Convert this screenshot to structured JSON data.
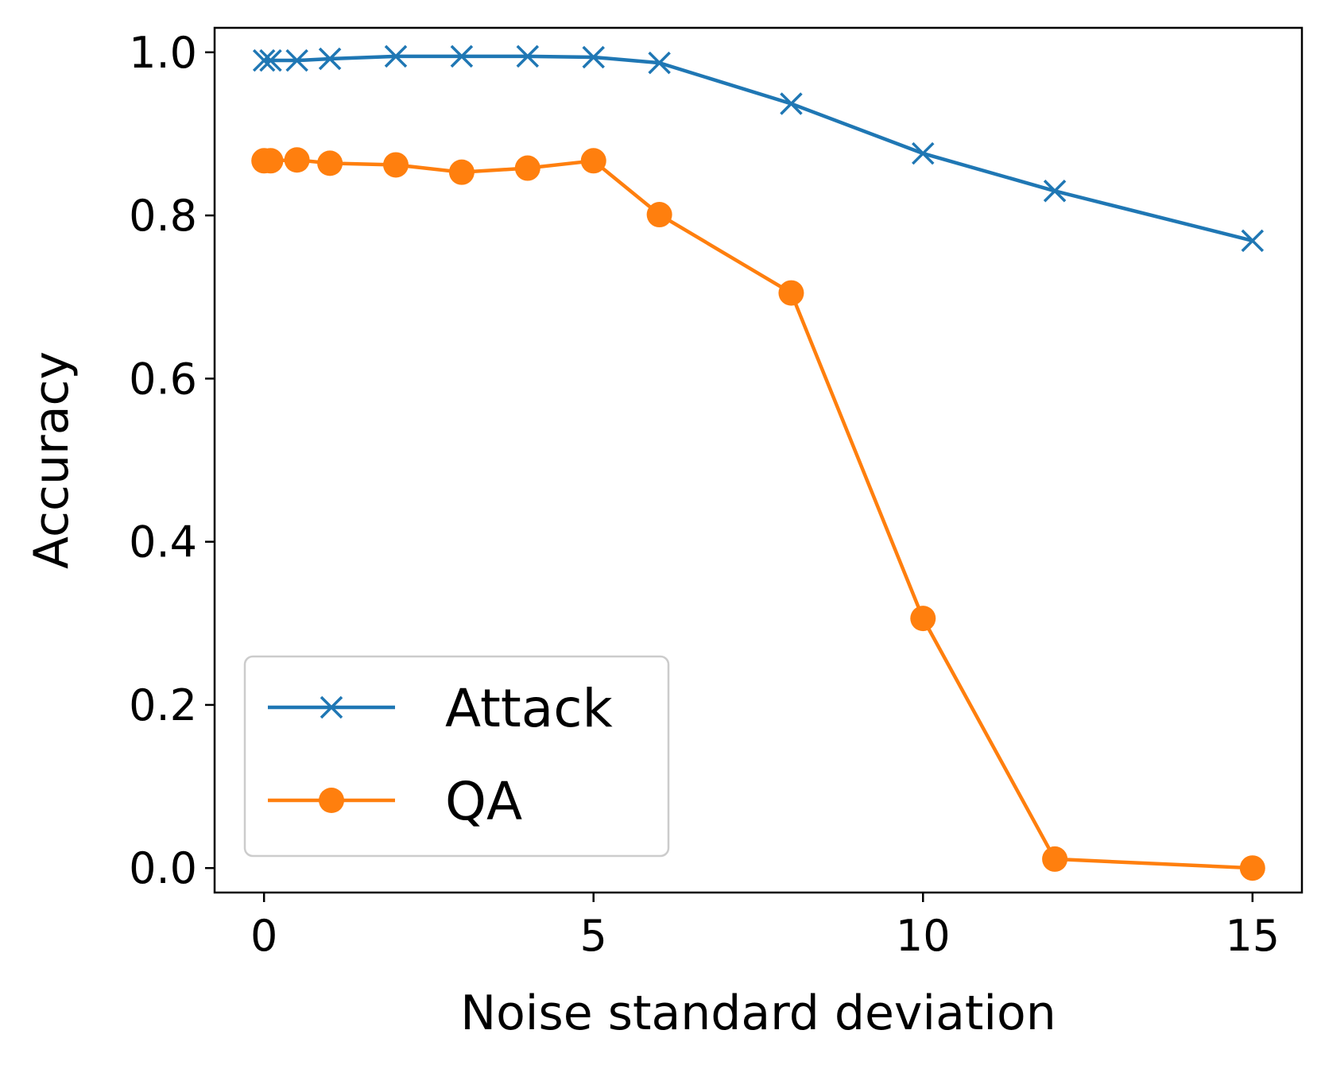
{
  "chart_data": {
    "type": "line",
    "title": "",
    "xlabel": "Noise standard deviation",
    "ylabel": "Accuracy",
    "xlim": [
      -0.75,
      15.75
    ],
    "ylim": [
      -0.03,
      1.03
    ],
    "xticks": [
      0,
      5,
      10,
      15
    ],
    "xtick_labels": [
      "0",
      "5",
      "10",
      "15"
    ],
    "yticks": [
      0.0,
      0.2,
      0.4,
      0.6,
      0.8,
      1.0
    ],
    "ytick_labels": [
      "0.0",
      "0.2",
      "0.4",
      "0.6",
      "0.8",
      "1.0"
    ],
    "grid": false,
    "legend_position": "lower-left",
    "x": [
      0,
      0.1,
      0.5,
      1,
      2,
      3,
      4,
      5,
      6,
      8,
      10,
      12,
      15
    ],
    "series": [
      {
        "name": "Attack",
        "marker": "x",
        "color": "#1f77b4",
        "values": [
          0.99,
          0.99,
          0.99,
          0.992,
          0.995,
          0.995,
          0.995,
          0.994,
          0.987,
          0.937,
          0.876,
          0.83,
          0.769
        ]
      },
      {
        "name": "QA",
        "marker": "circle",
        "color": "#ff7f0e",
        "values": [
          0.867,
          0.867,
          0.868,
          0.864,
          0.862,
          0.853,
          0.858,
          0.867,
          0.801,
          0.705,
          0.306,
          0.011,
          0.0
        ]
      }
    ]
  }
}
